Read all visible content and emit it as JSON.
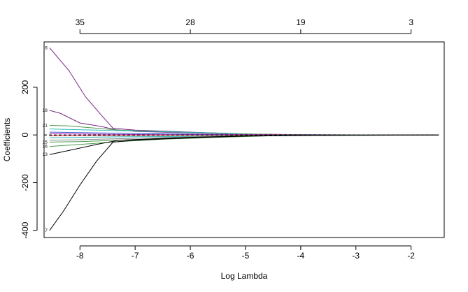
{
  "chart_data": {
    "type": "line",
    "title": "",
    "xlabel": "Log Lambda",
    "ylabel": "Coefficients",
    "xlim": [
      -8.65,
      -1.4
    ],
    "ylim": [
      -430,
      390
    ],
    "x_ticks": [
      "-8",
      "-7",
      "-6",
      "-5",
      "-4",
      "-3",
      "-2"
    ],
    "y_ticks": [
      "-400",
      "-200",
      "0",
      "200"
    ],
    "top_ticks": [
      {
        "x": -8,
        "label": "35"
      },
      {
        "x": -6,
        "label": "28"
      },
      {
        "x": -4,
        "label": "19"
      },
      {
        "x": -2,
        "label": "3"
      }
    ],
    "grid": false,
    "legend": "none",
    "series": [
      {
        "label": "6",
        "color": "#7a2a82",
        "points": [
          [
            -8.55,
            365
          ],
          [
            -8.2,
            270
          ],
          [
            -7.9,
            160
          ],
          [
            -7.6,
            80
          ],
          [
            -7.4,
            28
          ],
          [
            -7.0,
            20
          ],
          [
            -6.0,
            12
          ],
          [
            -5.0,
            4
          ],
          [
            -4.0,
            1
          ],
          [
            -3.0,
            0
          ],
          [
            -1.5,
            0
          ]
        ]
      },
      {
        "label": "18",
        "color": "#7a2a82",
        "points": [
          [
            -8.55,
            103
          ],
          [
            -8.35,
            90
          ],
          [
            -8.0,
            50
          ],
          [
            -7.6,
            35
          ],
          [
            -7.35,
            22
          ],
          [
            -7.0,
            15
          ],
          [
            -6.0,
            8
          ],
          [
            -5.0,
            3
          ],
          [
            -4.0,
            1
          ],
          [
            -1.5,
            0
          ]
        ]
      },
      {
        "label": "21",
        "color": "#4a9a4a",
        "points": [
          [
            -8.55,
            40
          ],
          [
            -8.2,
            38
          ],
          [
            -7.8,
            30
          ],
          [
            -7.3,
            20
          ],
          [
            -6.5,
            14
          ],
          [
            -5.5,
            7
          ],
          [
            -4.5,
            2
          ],
          [
            -3.5,
            0
          ],
          [
            -1.5,
            0
          ]
        ]
      },
      {
        "label": "",
        "color": "#2fb8b8",
        "points": [
          [
            -8.55,
            25
          ],
          [
            -8.0,
            22
          ],
          [
            -7.3,
            18
          ],
          [
            -6.5,
            14
          ],
          [
            -5.5,
            8
          ],
          [
            -5.1,
            3
          ],
          [
            -4.5,
            1
          ],
          [
            -1.5,
            0
          ]
        ]
      },
      {
        "label": "",
        "color": "#3355cc",
        "points": [
          [
            -8.55,
            12
          ],
          [
            -8.0,
            10
          ],
          [
            -7.0,
            6
          ],
          [
            -6.0,
            3
          ],
          [
            -5.0,
            1
          ],
          [
            -1.5,
            0
          ]
        ]
      },
      {
        "label": "",
        "color": "#c030c0",
        "points": [
          [
            -8.55,
            5
          ],
          [
            -8.0,
            4
          ],
          [
            -7.0,
            2
          ],
          [
            -6.0,
            1
          ],
          [
            -4.5,
            1
          ],
          [
            -3.6,
            0
          ],
          [
            -1.5,
            0
          ]
        ]
      },
      {
        "label": "",
        "color": "#cc3333",
        "points": [
          [
            -8.55,
            -4
          ],
          [
            -8.0,
            -3
          ],
          [
            -7.0,
            -2
          ],
          [
            -6.0,
            -1
          ],
          [
            -4.5,
            0
          ],
          [
            -1.5,
            0
          ]
        ]
      },
      {
        "label": "",
        "color": "#2fb8b8",
        "points": [
          [
            -8.55,
            -12
          ],
          [
            -8.0,
            -10
          ],
          [
            -7.3,
            -8
          ],
          [
            -6.0,
            -6
          ],
          [
            -5.2,
            -4
          ],
          [
            -4.3,
            -1
          ],
          [
            -1.5,
            0
          ]
        ]
      },
      {
        "label": "",
        "color": "#888888",
        "points": [
          [
            -8.55,
            -22
          ],
          [
            -8.0,
            -20
          ],
          [
            -7.0,
            -14
          ],
          [
            -6.0,
            -8
          ],
          [
            -5.0,
            -3
          ],
          [
            -4.0,
            -1
          ],
          [
            -1.5,
            0
          ]
        ]
      },
      {
        "label": "15",
        "color": "#4a9a4a",
        "points": [
          [
            -8.55,
            -30
          ],
          [
            -8.0,
            -28
          ],
          [
            -7.3,
            -22
          ],
          [
            -6.5,
            -15
          ],
          [
            -5.5,
            -8
          ],
          [
            -4.5,
            -3
          ],
          [
            -1.5,
            0
          ]
        ]
      },
      {
        "label": "16",
        "color": "#4a9a4a",
        "points": [
          [
            -8.55,
            -48
          ],
          [
            -8.0,
            -40
          ],
          [
            -7.3,
            -28
          ],
          [
            -6.5,
            -18
          ],
          [
            -5.5,
            -10
          ],
          [
            -4.5,
            -3
          ],
          [
            -1.5,
            0
          ]
        ]
      },
      {
        "label": "13",
        "color": "#000000",
        "points": [
          [
            -8.55,
            -82
          ],
          [
            -8.2,
            -65
          ],
          [
            -7.7,
            -40
          ],
          [
            -7.3,
            -22
          ],
          [
            -6.0,
            -10
          ],
          [
            -5.0,
            -4
          ],
          [
            -4.0,
            -1
          ],
          [
            -1.5,
            0
          ]
        ]
      },
      {
        "label": "7",
        "color": "#000000",
        "points": [
          [
            -8.55,
            -400
          ],
          [
            -8.3,
            -320
          ],
          [
            -8.0,
            -210
          ],
          [
            -7.7,
            -110
          ],
          [
            -7.4,
            -30
          ],
          [
            -7.0,
            -22
          ],
          [
            -6.0,
            -12
          ],
          [
            -5.0,
            -5
          ],
          [
            -4.0,
            -2
          ],
          [
            -3.0,
            -1
          ],
          [
            -1.5,
            0
          ]
        ]
      }
    ]
  }
}
